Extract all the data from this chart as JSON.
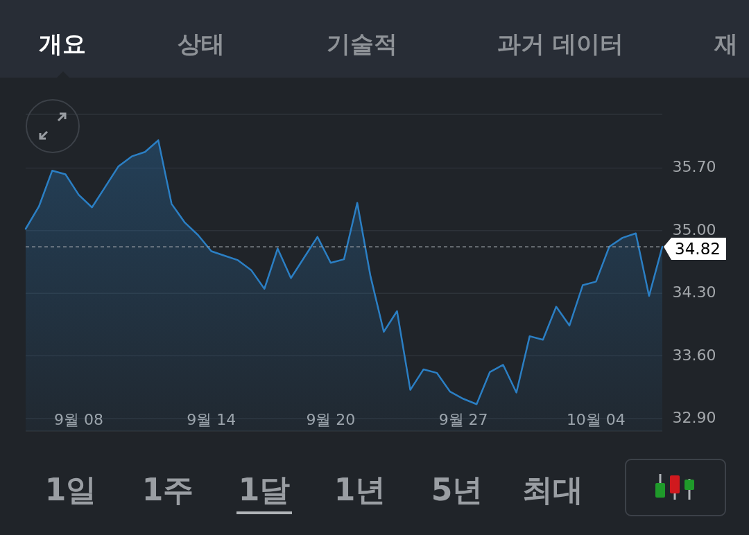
{
  "chart_data": {
    "type": "area",
    "categories": [
      null,
      null,
      null,
      null,
      "9월 08",
      null,
      null,
      null,
      null,
      null,
      null,
      null,
      null,
      null,
      "9월 14",
      null,
      null,
      null,
      null,
      null,
      null,
      null,
      null,
      "9월 20",
      null,
      null,
      null,
      null,
      null,
      null,
      null,
      null,
      null,
      "9월 27",
      null,
      null,
      null,
      null,
      null,
      null,
      null,
      null,
      null,
      "10월 04",
      null,
      null,
      null,
      null,
      null
    ],
    "values": [
      35.02,
      35.27,
      35.67,
      35.63,
      35.4,
      35.26,
      35.49,
      35.72,
      35.83,
      35.88,
      36.01,
      35.3,
      35.09,
      34.95,
      34.77,
      34.72,
      34.67,
      34.56,
      34.35,
      34.8,
      34.47,
      34.7,
      34.93,
      34.64,
      34.68,
      35.31,
      34.49,
      33.87,
      34.1,
      33.22,
      33.45,
      33.41,
      33.2,
      33.12,
      33.06,
      33.42,
      33.5,
      33.19,
      33.82,
      33.78,
      34.15,
      33.94,
      34.39,
      34.43,
      34.82,
      34.92,
      34.97,
      34.27,
      34.82
    ],
    "color": "#2b7fc4",
    "ylim": [
      32.76,
      36.3
    ],
    "yticks": [
      {
        "value": 32.9,
        "label": "32.90"
      },
      {
        "value": 33.6,
        "label": "33.60"
      },
      {
        "value": 34.3,
        "label": "34.30"
      },
      {
        "value": 35.0,
        "label": "35.00"
      },
      {
        "value": 35.7,
        "label": "35.70"
      }
    ],
    "grid": "y",
    "ref_lines": [
      {
        "axis": "y",
        "value": 34.82,
        "label": "34.82",
        "line_style": "dashed",
        "color": "#9aa0a6"
      }
    ],
    "annotations": [
      "개요",
      "상태",
      "기술적",
      "과거 데이터",
      "재",
      "1일",
      "1주",
      "1달",
      "1년",
      "5년",
      "최대"
    ]
  }
}
